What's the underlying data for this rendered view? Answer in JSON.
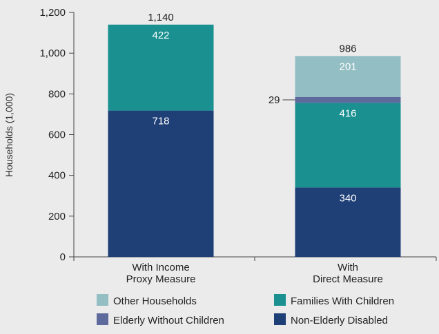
{
  "chart_data": {
    "type": "bar",
    "stacked": true,
    "categories": [
      [
        "With Income",
        "Proxy Measure"
      ],
      [
        "With",
        "Direct Measure"
      ]
    ],
    "series": [
      {
        "name": "Non-Elderly Disabled",
        "color": "#1f3f77",
        "values": [
          718,
          340
        ],
        "labels": [
          "718",
          "340"
        ],
        "label_color": "#ffffff"
      },
      {
        "name": "Families With Children",
        "color": "#1a9090",
        "values": [
          422,
          416
        ],
        "labels": [
          "422",
          "416"
        ],
        "label_color": "#ffffff"
      },
      {
        "name": "Elderly Without Children",
        "color": "#5f6a9c",
        "values": [
          0,
          29
        ],
        "labels": [
          "",
          "29"
        ],
        "label_color": "#222222"
      },
      {
        "name": "Other Households",
        "color": "#93bec3",
        "values": [
          0,
          201
        ],
        "labels": [
          "",
          "201"
        ],
        "label_color": "#ffffff"
      }
    ],
    "totals": [
      "1,140",
      "986"
    ],
    "ylabel": "Households (1,000)",
    "ylim": [
      0,
      1200
    ],
    "yticks": [
      0,
      200,
      400,
      600,
      800,
      1000,
      1200
    ],
    "ytick_labels": [
      "0",
      "200",
      "400",
      "600",
      "800",
      "1,000",
      "1,200"
    ],
    "grid": false,
    "legend": {
      "placement": "bottom",
      "order": [
        "Other Households",
        "Families With Children",
        "Elderly Without Children",
        "Non-Elderly Disabled"
      ]
    }
  }
}
